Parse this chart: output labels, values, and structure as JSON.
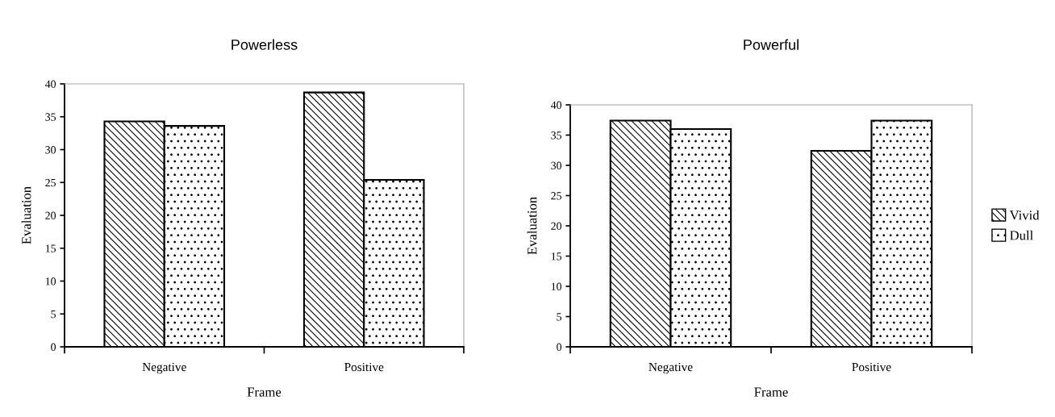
{
  "chart_data": [
    {
      "type": "bar",
      "title": "Powerless",
      "xlabel": "Frame",
      "ylabel": "Evaluation",
      "categories": [
        "Negative",
        "Positive"
      ],
      "ylim": [
        0,
        40
      ],
      "yticks": [
        0,
        5,
        10,
        15,
        20,
        25,
        30,
        35,
        40
      ],
      "grid": false,
      "legend": false,
      "series": [
        {
          "color": "#ffffff",
          "values": [
            34.3,
            38.7
          ]
        },
        {
          "color": "#ffffff",
          "values": [
            33.6,
            25.4
          ]
        }
      ]
    },
    {
      "type": "bar",
      "title": "Powerful",
      "xlabel": "Frame",
      "ylabel": "Evaluation",
      "categories": [
        "Negative",
        "Positive"
      ],
      "ylim": [
        0,
        40
      ],
      "yticks": [
        0,
        5,
        10,
        15,
        20,
        25,
        30,
        35,
        40
      ],
      "grid": false,
      "legend": "right",
      "series": [
        {
          "name": "Vivid",
          "color": "#ffffff",
          "values": [
            37.4,
            32.4
          ]
        },
        {
          "name": "Dull",
          "color": "#ffffff",
          "values": [
            36.0,
            37.4
          ]
        }
      ]
    }
  ]
}
